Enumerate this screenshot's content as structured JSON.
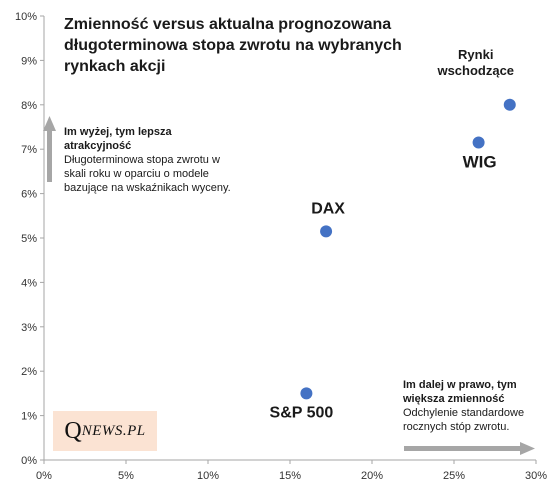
{
  "chart_data": {
    "type": "scatter",
    "title": "Zmienność versus aktualna prognozowana długoterminowa  stopa zwrotu na wybranych rynkach akcji",
    "xlim": [
      0,
      0.3
    ],
    "ylim": [
      0,
      0.1
    ],
    "x_ticks": [
      "0%",
      "5%",
      "10%",
      "15%",
      "20%",
      "25%",
      "30%"
    ],
    "y_ticks": [
      "0%",
      "1%",
      "2%",
      "3%",
      "4%",
      "5%",
      "6%",
      "7%",
      "8%",
      "9%",
      "10%"
    ],
    "points": [
      {
        "label_lines": [
          "S&P 500"
        ],
        "x": 0.16,
        "y": 0.015,
        "color": "#4472c4"
      },
      {
        "label_lines": [
          "DAX"
        ],
        "x": 0.172,
        "y": 0.0515,
        "color": "#4472c4"
      },
      {
        "label_lines": [
          "WIG"
        ],
        "x": 0.265,
        "y": 0.0715,
        "color": "#4472c4"
      },
      {
        "label_lines": [
          "Rynki",
          "wschodzące"
        ],
        "x": 0.284,
        "y": 0.08,
        "color": "#4472c4"
      }
    ],
    "grid": false,
    "legend": "none"
  },
  "notes": {
    "y_note": {
      "head": "Im wyżej,  tym lepsza atrakcyjność",
      "body": "Długoterminowa stopa zwrotu w skali roku w oparciu o modele bazujące na wskaźnikach wyceny."
    },
    "x_note": {
      "head": "Im dalej  w prawo,  tym większa  zmienność",
      "body": "Odchylenie standardowe rocznych stóp zwrotu."
    }
  },
  "logo": {
    "initial": "Q",
    "rest": "NEWS.PL"
  },
  "colors": {
    "axis": "#a6a6a6",
    "point": "#4472c4",
    "arrow": "#a6a6a6",
    "logo_bg": "#fbe3d3"
  }
}
